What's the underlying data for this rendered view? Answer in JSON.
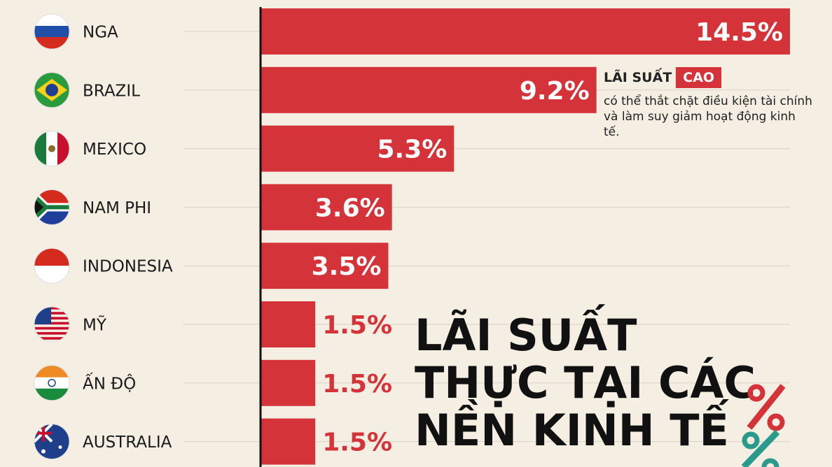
{
  "chart_data": {
    "type": "bar",
    "orientation": "horizontal",
    "title": [
      "LÃI SUẤT",
      "THỰC TẠI CÁC",
      "NỀN KINH TẾ"
    ],
    "categories": [
      "NGA",
      "BRAZIL",
      "MEXICO",
      "NAM PHI",
      "INDONESIA",
      "MỸ",
      "ẤN ĐỘ",
      "AUSTRALIA"
    ],
    "values": [
      14.5,
      9.2,
      5.3,
      3.6,
      3.5,
      1.5,
      1.5,
      1.5
    ],
    "value_labels": [
      "14.5%",
      "9.2%",
      "5.3%",
      "3.6%",
      "3.5%",
      "1.5%",
      "1.5%",
      "1.5%"
    ],
    "color": "#d4333a",
    "annotation": {
      "heading": "LÃI SUẤT",
      "highlight": "CAO",
      "text": "có thể thắt chặt điều kiện tài chính và làm suy giảm hoạt động kinh tế."
    }
  }
}
